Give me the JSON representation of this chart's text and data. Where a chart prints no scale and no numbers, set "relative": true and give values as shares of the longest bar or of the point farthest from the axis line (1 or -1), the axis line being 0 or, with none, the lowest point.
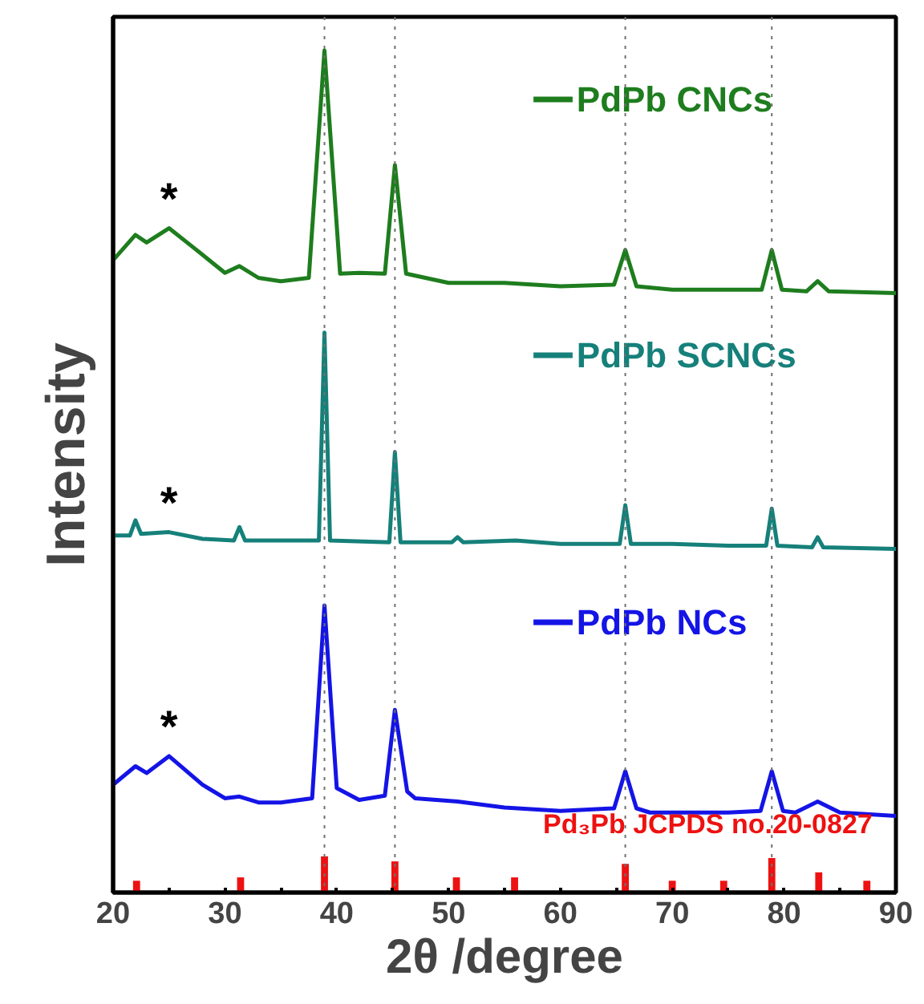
{
  "chart_data": {
    "type": "line",
    "xlabel": "2θ /degree",
    "ylabel": "Intensity",
    "relative": true,
    "xlim": [
      20,
      90
    ],
    "xticks": [
      20,
      {
        "value": 25,
        "label": null
      },
      30,
      {
        "value": 35,
        "label": null
      },
      40,
      {
        "value": 45,
        "label": null
      },
      50,
      {
        "value": 55,
        "label": null
      },
      60,
      {
        "value": 65,
        "label": null
      },
      70,
      {
        "value": 75,
        "label": null
      },
      80,
      {
        "value": 85,
        "label": null
      },
      90
    ],
    "series": [
      {
        "name": "PdPb CNCs",
        "color": "#1e7d1e",
        "x": [
          20,
          22,
          23,
          25,
          27,
          30,
          31.3,
          33,
          35,
          37.5,
          38.9,
          40.3,
          42,
          44.3,
          45.2,
          46.2,
          50,
          55,
          60,
          64.8,
          65.8,
          66.8,
          70,
          75,
          78,
          78.9,
          79.8,
          82,
          83,
          84,
          90
        ],
        "values": [
          0.751,
          0.781,
          0.772,
          0.789,
          0.768,
          0.736,
          0.744,
          0.73,
          0.726,
          0.73,
          1.0,
          0.735,
          0.736,
          0.735,
          0.864,
          0.735,
          0.724,
          0.724,
          0.72,
          0.722,
          0.763,
          0.72,
          0.716,
          0.716,
          0.716,
          0.763,
          0.716,
          0.714,
          0.726,
          0.714,
          0.712
        ]
      },
      {
        "name": "PdPb SCNCs",
        "color": "#16807a",
        "x": [
          20,
          21.5,
          22,
          22.5,
          25,
          28,
          30.8,
          31.3,
          31.8,
          35,
          38.4,
          38.9,
          39.4,
          44.7,
          45.2,
          45.7,
          50.3,
          50.8,
          51.3,
          56,
          60,
          65.3,
          65.8,
          66.3,
          70,
          75,
          78.4,
          78.9,
          79.4,
          82.5,
          83,
          83.5,
          90
        ],
        "values": [
          0.424,
          0.424,
          0.442,
          0.426,
          0.428,
          0.42,
          0.418,
          0.434,
          0.418,
          0.418,
          0.418,
          0.665,
          0.418,
          0.416,
          0.523,
          0.416,
          0.416,
          0.422,
          0.416,
          0.418,
          0.414,
          0.414,
          0.46,
          0.414,
          0.414,
          0.412,
          0.412,
          0.456,
          0.412,
          0.41,
          0.422,
          0.41,
          0.408
        ]
      },
      {
        "name": "PdPb NCs",
        "color": "#1414e6",
        "x": [
          20,
          22,
          23,
          25,
          28,
          30,
          31.3,
          33,
          35,
          37.8,
          38.9,
          40,
          42,
          44.3,
          45.2,
          46.3,
          47,
          50.8,
          55,
          60,
          64.8,
          65.8,
          66.8,
          68,
          75,
          77.9,
          78.9,
          79.9,
          81,
          83,
          85,
          90
        ],
        "values": [
          0.128,
          0.15,
          0.142,
          0.162,
          0.128,
          0.112,
          0.114,
          0.107,
          0.107,
          0.112,
          0.341,
          0.124,
          0.11,
          0.115,
          0.217,
          0.12,
          0.112,
          0.108,
          0.101,
          0.097,
          0.1,
          0.144,
          0.1,
          0.095,
          0.095,
          0.097,
          0.144,
          0.097,
          0.095,
          0.108,
          0.095,
          0.091
        ]
      },
      {
        "name": "Pd₃Pb JCPDS no.20-0827",
        "type": "bar",
        "color": "#ee1111",
        "x": [
          22.1,
          31.4,
          38.9,
          45.2,
          50.7,
          55.9,
          65.8,
          70,
          74.6,
          78.9,
          83.1,
          87.4
        ],
        "values": [
          0.014,
          0.018,
          0.043,
          0.037,
          0.018,
          0.018,
          0.034,
          0.014,
          0.014,
          0.041,
          0.024,
          0.014
        ]
      }
    ],
    "ref_lines": [
      {
        "axis": "x",
        "value": 38.9,
        "color": "#707070",
        "line_style": "dotted"
      },
      {
        "axis": "x",
        "value": 45.2,
        "color": "#707070",
        "line_style": "dotted"
      },
      {
        "axis": "x",
        "value": 65.8,
        "color": "#707070",
        "line_style": "dotted"
      },
      {
        "axis": "x",
        "value": 78.9,
        "color": "#707070",
        "line_style": "dotted"
      }
    ],
    "legend": "top right",
    "annotations": [
      "*",
      "*",
      "*"
    ]
  }
}
